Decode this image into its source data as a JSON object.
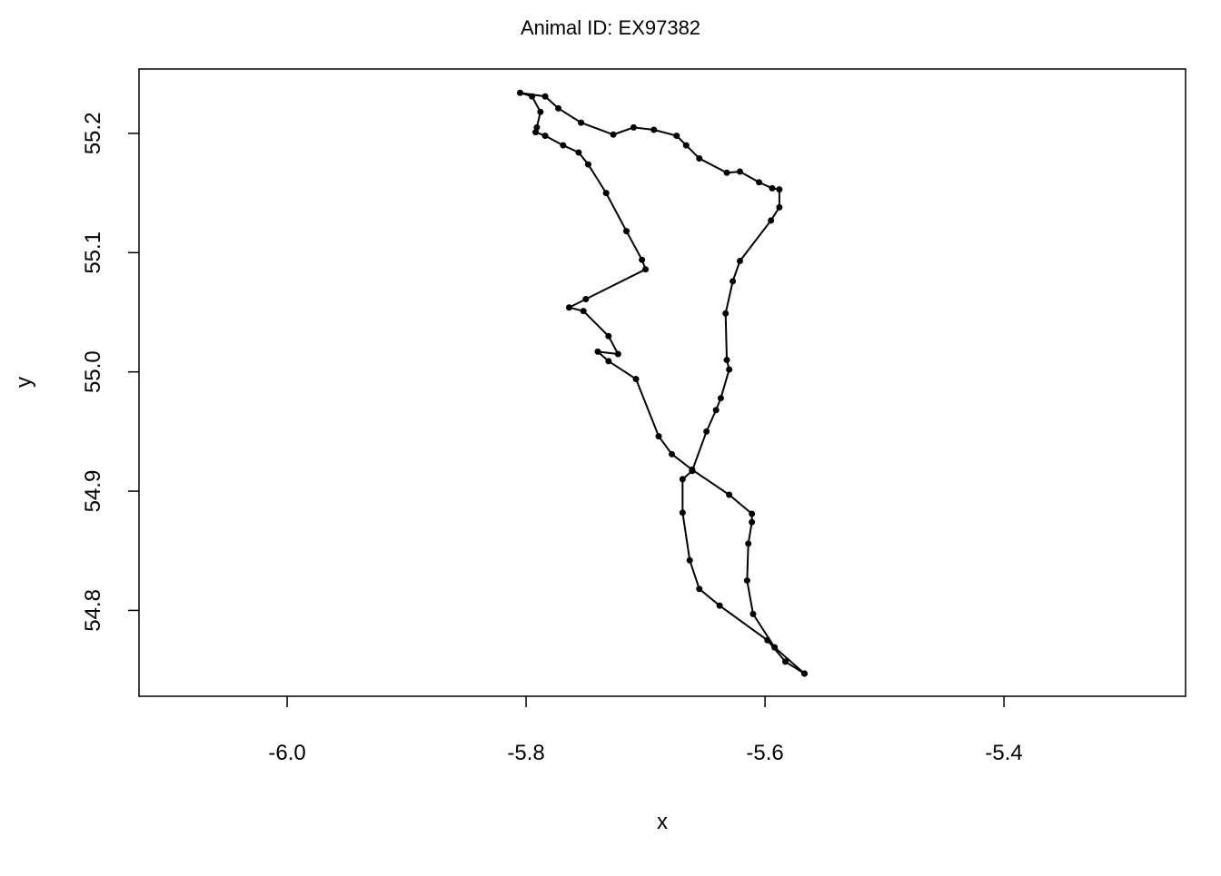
{
  "chart_data": {
    "type": "line",
    "title": "Animal ID: EX97382",
    "x_label": "x",
    "y_label": "y",
    "color": "#000000",
    "markers": true,
    "x": [
      -5.567,
      -5.592,
      -5.61,
      -5.615,
      -5.614,
      -5.611,
      -5.611,
      -5.63,
      -5.661,
      -5.678,
      -5.689,
      -5.708,
      -5.731,
      -5.74,
      -5.723,
      -5.731,
      -5.752,
      -5.764,
      -5.75,
      -5.7,
      -5.703,
      -5.716,
      -5.733,
      -5.748,
      -5.756,
      -5.769,
      -5.784,
      -5.792,
      -5.791,
      -5.788,
      -5.795,
      -5.805,
      -5.784,
      -5.773,
      -5.754,
      -5.727,
      -5.71,
      -5.693,
      -5.674,
      -5.666,
      -5.655,
      -5.632,
      -5.621,
      -5.605,
      -5.594,
      -5.588,
      -5.588,
      -5.595,
      -5.621,
      -5.627,
      -5.633,
      -5.632,
      -5.63,
      -5.637,
      -5.641,
      -5.649,
      -5.661,
      -5.669,
      -5.669,
      -5.663,
      -5.655,
      -5.638,
      -5.598,
      -5.583,
      -5.567
    ],
    "values": [
      54.747,
      54.769,
      54.797,
      54.825,
      54.856,
      54.874,
      54.881,
      54.897,
      54.918,
      54.931,
      54.946,
      54.994,
      55.009,
      55.017,
      55.015,
      55.03,
      55.051,
      55.054,
      55.061,
      55.086,
      55.094,
      55.118,
      55.15,
      55.174,
      55.184,
      55.19,
      55.198,
      55.201,
      55.205,
      55.218,
      55.231,
      55.234,
      55.231,
      55.221,
      55.209,
      55.199,
      55.205,
      55.203,
      55.198,
      55.19,
      55.179,
      55.167,
      55.168,
      55.159,
      55.154,
      55.153,
      55.138,
      55.127,
      55.093,
      55.076,
      55.049,
      55.01,
      55.002,
      54.978,
      54.968,
      54.95,
      54.917,
      54.91,
      54.882,
      54.842,
      54.818,
      54.804,
      54.775,
      54.757,
      54.747
    ],
    "xlim": [
      -6.124,
      -5.248
    ],
    "ylim": [
      54.728,
      55.254
    ],
    "xticks": [
      {
        "value": -6,
        "label": "-6.0"
      },
      -5.8,
      -5.6,
      -5.4
    ],
    "yticks": [
      54.8,
      54.9,
      {
        "value": 55,
        "label": "55.0"
      },
      55.1,
      55.2
    ]
  }
}
